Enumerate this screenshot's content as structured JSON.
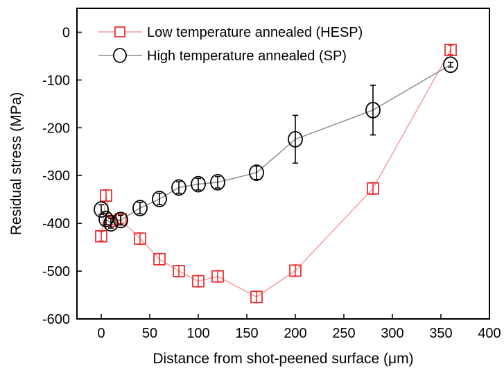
{
  "chart_data": {
    "type": "scatter",
    "xlabel": "Distance from shot-peened surface (μm)",
    "ylabel": "Residual stress (MPa)",
    "xlim": [
      -25,
      400
    ],
    "ylim": [
      -600,
      50
    ],
    "x_ticks": [
      0,
      50,
      100,
      150,
      200,
      250,
      300,
      350,
      400
    ],
    "y_ticks": [
      0,
      -100,
      -200,
      -300,
      -400,
      -500,
      -600
    ],
    "x_tick_labels": [
      "0",
      "50",
      "100",
      "150",
      "200",
      "250",
      "300",
      "350",
      "400"
    ],
    "y_tick_labels": [
      "0",
      "-100",
      "-200",
      "-300",
      "-400",
      "-500",
      "-600"
    ],
    "legend_position": "top-left",
    "grid": false,
    "series": [
      {
        "name": "Low temperature annealed (HESP)",
        "color": "#e8312f",
        "line_color": "#f39b9b",
        "marker": "square",
        "x": [
          0,
          5,
          10,
          20,
          40,
          60,
          80,
          100,
          120,
          160,
          200,
          280,
          360
        ],
        "y": [
          -427,
          -342,
          -395,
          -392,
          -432,
          -475,
          -500,
          -521,
          -511,
          -554,
          -499,
          -327,
          -37
        ],
        "err": [
          10,
          12,
          8,
          8,
          12,
          12,
          12,
          12,
          12,
          12,
          12,
          12,
          10
        ]
      },
      {
        "name": "High temperature annealed (SP)",
        "color": "#000000",
        "line_color": "#8c8c8c",
        "marker": "circle",
        "x": [
          0,
          5,
          10,
          20,
          40,
          60,
          80,
          100,
          120,
          160,
          200,
          280,
          360
        ],
        "y": [
          -371,
          -391,
          -400,
          -393,
          -368,
          -349,
          -325,
          -318,
          -314,
          -294,
          -224,
          -163,
          -68
        ],
        "err": [
          10,
          12,
          10,
          10,
          12,
          12,
          12,
          12,
          12,
          14,
          50,
          52,
          5
        ]
      }
    ]
  }
}
